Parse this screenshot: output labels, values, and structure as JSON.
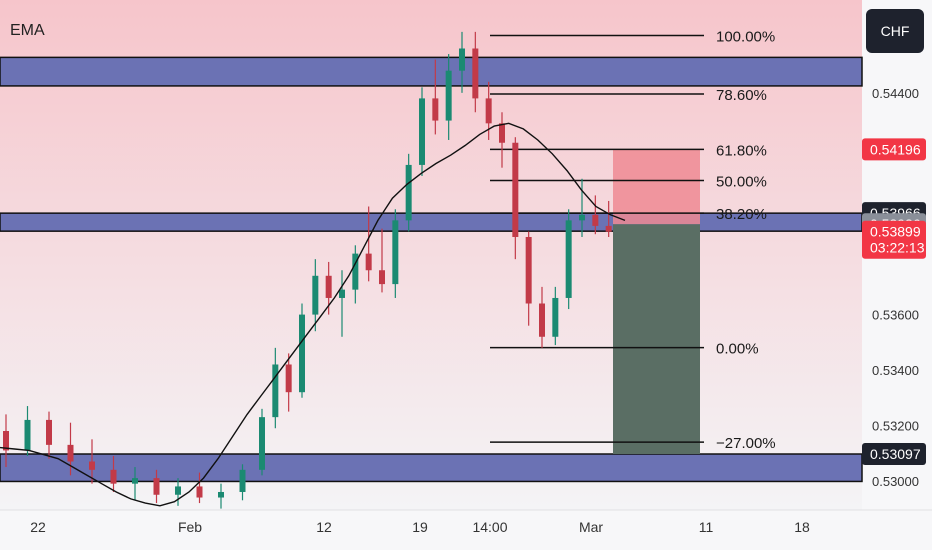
{
  "indicator_label": "EMA",
  "currency": "CHF",
  "colors": {
    "background_upper": "#f6c5cb",
    "background_lower": "#f4f4f6",
    "zone_fill": "#6b72b4",
    "candle_up": "#1b8a72",
    "candle_down": "#c23a48",
    "ema_line": "#111111",
    "short_stop_zone": "#ee8a93",
    "short_target_zone": "#5a6e64",
    "badge_dark": "#1e222d",
    "badge_red": "#f23645",
    "badge_gray": "#8a8f99"
  },
  "chart_data": {
    "type": "candlestick",
    "instrument_note": "",
    "ylim": [
      0.52895,
      0.54735
    ],
    "y_ticks": [
      0.544,
      0.536,
      0.534,
      0.532,
      0.53
    ],
    "y_tick_labels": [
      "0.54400",
      "0.53600",
      "0.53400",
      "0.53200",
      "0.53000"
    ],
    "x_tick_labels": [
      "22",
      "Feb",
      "12",
      "19",
      "14:00",
      "Mar",
      "11",
      "18"
    ],
    "price_badges": [
      {
        "value": 0.54196,
        "label": "0.54196",
        "style": "red"
      },
      {
        "value": 0.53966,
        "label": "0.53966",
        "style": "dark"
      },
      {
        "value": 0.53926,
        "label": "0.53926",
        "style": "gray"
      },
      {
        "value": 0.53899,
        "label": "0.53899",
        "style": "red",
        "countdown": "03:22:13"
      },
      {
        "value": 0.53097,
        "label": "0.53097",
        "style": "dark"
      }
    ],
    "zones": [
      {
        "from": 0.54425,
        "to": 0.54528
      },
      {
        "from": 0.53901,
        "to": 0.53966
      },
      {
        "from": 0.52998,
        "to": 0.53097
      }
    ],
    "fibonacci": {
      "levels": [
        {
          "label": "100.00%",
          "value": 0.54607
        },
        {
          "label": "78.60%",
          "value": 0.54396
        },
        {
          "label": "61.80%",
          "value": 0.54196
        },
        {
          "label": "50.00%",
          "value": 0.54084
        },
        {
          "label": "38.20%",
          "value": 0.53966
        },
        {
          "label": "0.00%",
          "value": 0.53481
        },
        {
          "label": "−27.00%",
          "value": 0.5314
        }
      ]
    },
    "position": {
      "type": "short",
      "stop": 0.54196,
      "entry": 0.53926,
      "target": 0.53097
    },
    "ema": [
      0.5312,
      0.53115,
      0.5311,
      0.53095,
      0.5308,
      0.5305,
      0.5302,
      0.5299,
      0.5296,
      0.52935,
      0.5292,
      0.5291,
      0.52925,
      0.5296,
      0.5301,
      0.5308,
      0.5316,
      0.5324,
      0.5331,
      0.5338,
      0.5345,
      0.5352,
      0.5359,
      0.5366,
      0.5374,
      0.5384,
      0.5394,
      0.5402,
      0.5407,
      0.5411,
      0.54145,
      0.54175,
      0.5421,
      0.5425,
      0.5428,
      0.5429,
      0.5427,
      0.5423,
      0.5418,
      0.5412,
      0.5405,
      0.5399,
      0.5396,
      0.5394
    ],
    "candles": [
      [
        0.5318,
        0.5324,
        0.5305,
        0.5311
      ],
      [
        0.5311,
        0.5327,
        0.5309,
        0.5322
      ],
      [
        0.5322,
        0.5325,
        0.5308,
        0.5313
      ],
      [
        0.5313,
        0.5321,
        0.5302,
        0.5307
      ],
      [
        0.5307,
        0.5315,
        0.5299,
        0.5304
      ],
      [
        0.5304,
        0.5309,
        0.5296,
        0.5299
      ],
      [
        0.5299,
        0.5305,
        0.5293,
        0.5301
      ],
      [
        0.5301,
        0.5304,
        0.5292,
        0.5295
      ],
      [
        0.5295,
        0.5301,
        0.5291,
        0.5298
      ],
      [
        0.5298,
        0.5303,
        0.5292,
        0.5294
      ],
      [
        0.5294,
        0.5299,
        0.529,
        0.5296
      ],
      [
        0.5296,
        0.5306,
        0.5293,
        0.5304
      ],
      [
        0.5304,
        0.5326,
        0.5302,
        0.5323
      ],
      [
        0.5323,
        0.5348,
        0.5319,
        0.5342
      ],
      [
        0.5342,
        0.5346,
        0.5325,
        0.5332
      ],
      [
        0.5332,
        0.5364,
        0.533,
        0.536
      ],
      [
        0.536,
        0.538,
        0.5354,
        0.5374
      ],
      [
        0.5374,
        0.5379,
        0.536,
        0.5366
      ],
      [
        0.5366,
        0.5376,
        0.5352,
        0.5369
      ],
      [
        0.5369,
        0.5385,
        0.5364,
        0.5382
      ],
      [
        0.5382,
        0.5399,
        0.5372,
        0.5376
      ],
      [
        0.5376,
        0.5391,
        0.5368,
        0.5371
      ],
      [
        0.5371,
        0.5398,
        0.5366,
        0.5394
      ],
      [
        0.5394,
        0.5418,
        0.539,
        0.5414
      ],
      [
        0.5414,
        0.5442,
        0.541,
        0.5438
      ],
      [
        0.5438,
        0.5452,
        0.5425,
        0.543
      ],
      [
        0.543,
        0.5454,
        0.5423,
        0.5448
      ],
      [
        0.5448,
        0.5462,
        0.544,
        0.5456
      ],
      [
        0.5456,
        0.5462,
        0.5433,
        0.5438
      ],
      [
        0.5438,
        0.5444,
        0.5423,
        0.5429
      ],
      [
        0.5429,
        0.5433,
        0.5413,
        0.5422
      ],
      [
        0.5422,
        0.5424,
        0.538,
        0.5388
      ],
      [
        0.5388,
        0.539,
        0.5356,
        0.5364
      ],
      [
        0.5364,
        0.537,
        0.5348,
        0.5352
      ],
      [
        0.5352,
        0.537,
        0.5349,
        0.5366
      ],
      [
        0.5366,
        0.5398,
        0.5362,
        0.5394
      ],
      [
        0.5394,
        0.5409,
        0.5388,
        0.5396
      ],
      [
        0.5396,
        0.5403,
        0.5389,
        0.5392
      ],
      [
        0.5392,
        0.5401,
        0.5388,
        0.53899
      ]
    ]
  }
}
